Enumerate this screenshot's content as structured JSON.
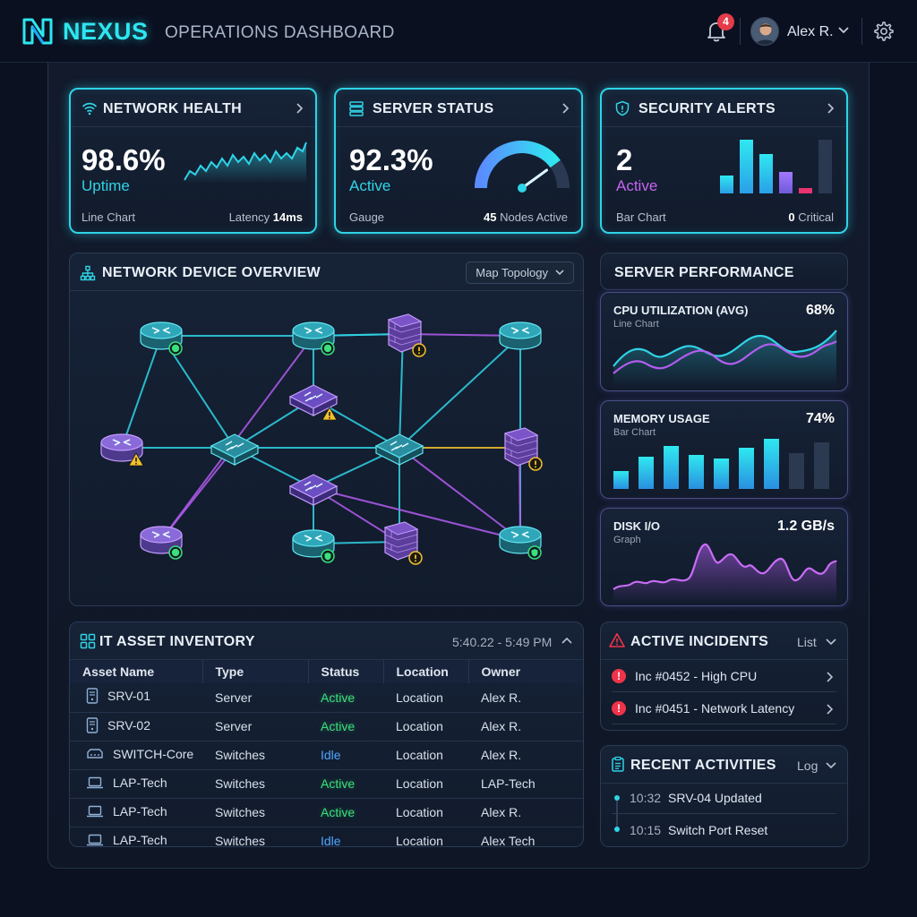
{
  "header": {
    "brand": "NEXUS",
    "subtitle": "OPERATIONS DASHBOARD",
    "notification_count": "4",
    "user_name": "Alex R."
  },
  "cards": {
    "network_health": {
      "title": "NETWORK HEALTH",
      "value": "98.6%",
      "label": "Uptime",
      "chart_type": "Line Chart",
      "latency_label": "Latency",
      "latency_value": "14ms"
    },
    "server_status": {
      "title": "SERVER STATUS",
      "value": "92.3%",
      "label": "Active",
      "chart_type": "Gauge",
      "nodes_value": "45",
      "nodes_label": "Nodes Active",
      "gauge_fraction": 0.8
    },
    "security_alerts": {
      "title": "SECURITY ALERTS",
      "value": "2",
      "label": "Active",
      "chart_type": "Bar Chart",
      "critical_value": "0",
      "critical_label": "Critical"
    }
  },
  "topology": {
    "title": "NETWORK DEVICE OVERVIEW",
    "dropdown_label": "Map Topology"
  },
  "performance": {
    "title": "SERVER PERFORMANCE",
    "cpu": {
      "title": "CPU UTILIZATION (AVG)",
      "sub": "Line Chart",
      "value": "68%"
    },
    "memory": {
      "title": "MEMORY USAGE",
      "sub": "Bar Chart",
      "value": "74%"
    },
    "disk": {
      "title": "DISK I/O",
      "sub": "Graph",
      "value": "1.2 GB/s"
    }
  },
  "inventory": {
    "title": "IT ASSET INVENTORY",
    "time_range": "5:40.22 - 5:49 PM",
    "columns": [
      "Asset Name",
      "Type",
      "Status",
      "Location",
      "Owner"
    ],
    "rows": [
      {
        "icon": "server-icon",
        "name": "SRV-01",
        "type": "Server",
        "status": "Active",
        "location": "Location",
        "owner": "Alex R."
      },
      {
        "icon": "server-icon",
        "name": "SRV-02",
        "type": "Server",
        "status": "Active",
        "location": "Location",
        "owner": "Alex R."
      },
      {
        "icon": "switch-icon",
        "name": "SWITCH-Core",
        "type": "Switches",
        "status": "Idle",
        "location": "Location",
        "owner": "Alex R."
      },
      {
        "icon": "laptop-icon",
        "name": "LAP-Tech",
        "type": "Switches",
        "status": "Active",
        "location": "Location",
        "owner": "LAP-Tech"
      },
      {
        "icon": "laptop-icon",
        "name": "LAP-Tech",
        "type": "Switches",
        "status": "Active",
        "location": "Location",
        "owner": "Alex R."
      },
      {
        "icon": "laptop-icon",
        "name": "LAP-Tech",
        "type": "Switches",
        "status": "Idle",
        "location": "Location",
        "owner": "Alex Tech"
      }
    ]
  },
  "incidents": {
    "title": "ACTIVE INCIDENTS",
    "view_label": "List",
    "items": [
      "Inc #0452 - High CPU",
      "Inc #0451 - Network Latency"
    ]
  },
  "activities": {
    "title": "RECENT ACTIVITIES",
    "view_label": "Log",
    "items": [
      {
        "time": "10:32",
        "text": "SRV-04 Updated"
      },
      {
        "time": "10:15",
        "text": "Switch Port Reset"
      }
    ]
  },
  "colors": {
    "accent_cyan": "#2fd4e6",
    "accent_purple": "#b35cf0",
    "status_active": "#3be07a",
    "status_idle": "#4fa6ff",
    "alert_red": "#f0334a",
    "warn_yellow": "#f2c12e"
  }
}
